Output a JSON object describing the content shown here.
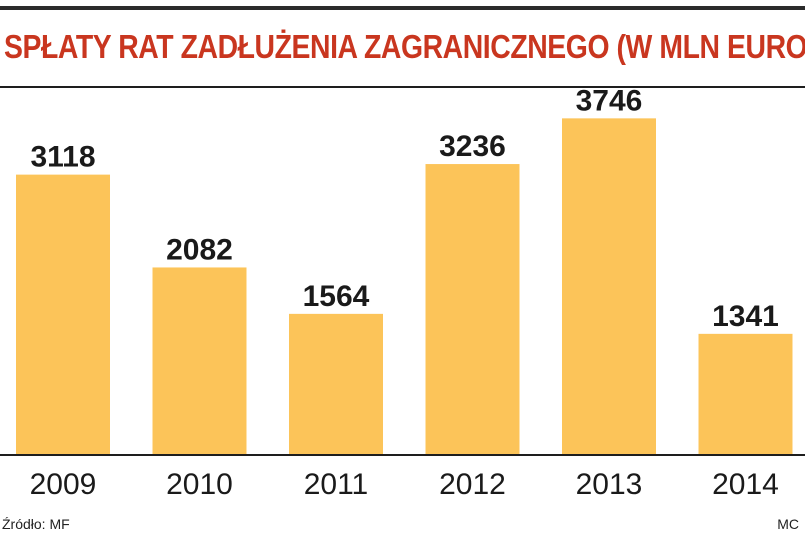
{
  "header": {
    "title": "SPŁATY RAT ZADŁUŻENIA ZAGRANICZNEGO (W MLN EURO)"
  },
  "footer": {
    "source": "Źródło: MF",
    "credit": "MC"
  },
  "colors": {
    "title": "#c9361f",
    "bar": "#fcc459",
    "axis": "#1e1e1e",
    "text": "#1a1a1a"
  },
  "chart_data": {
    "type": "bar",
    "categories": [
      "2009",
      "2010",
      "2011",
      "2012",
      "2013",
      "2014"
    ],
    "values": [
      3118,
      2082,
      1564,
      3236,
      3746,
      1341
    ],
    "data_labels": [
      "3118",
      "2082",
      "1564",
      "3236",
      "3746",
      "1341"
    ],
    "title": "SPŁATY RAT ZADŁUŻENIA ZAGRANICZNEGO (W MLN EURO)",
    "xlabel": "",
    "ylabel": "",
    "ylim": [
      0,
      4000
    ],
    "grid": false,
    "legend": "none"
  }
}
